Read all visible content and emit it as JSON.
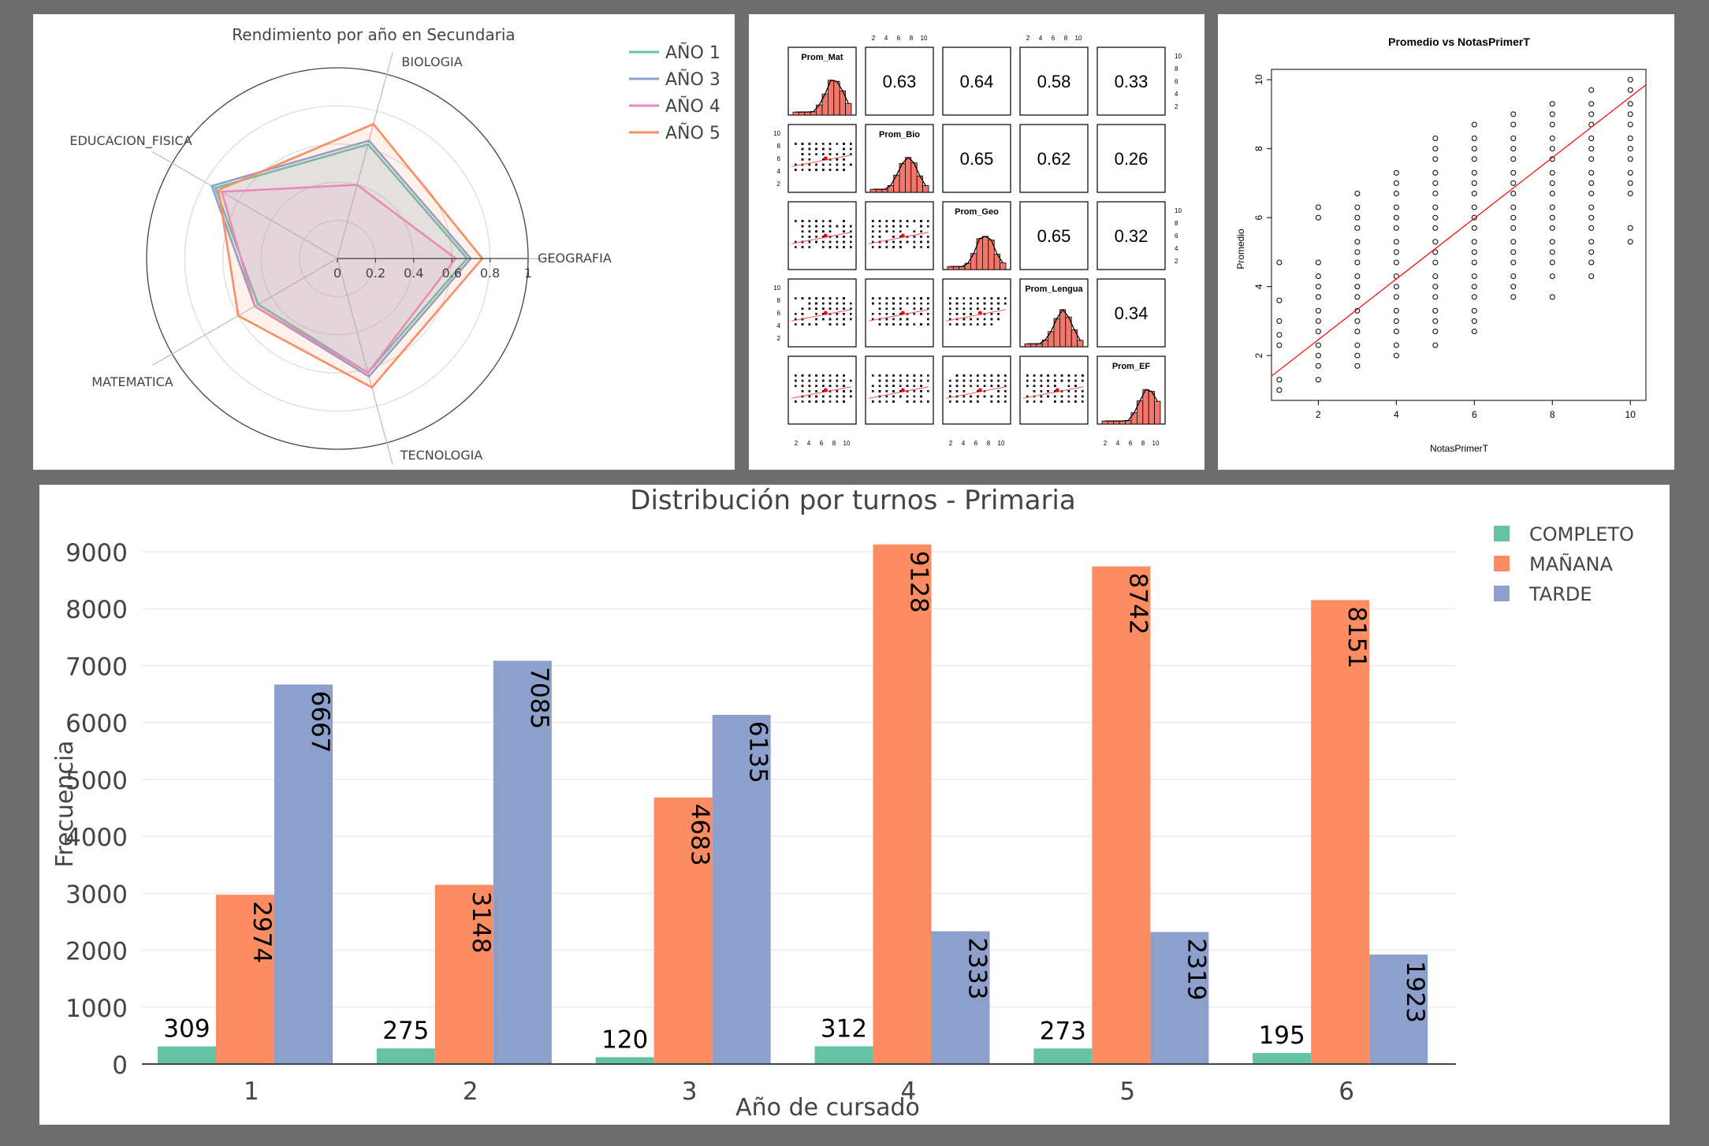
{
  "chart_data": [
    {
      "type": "radar",
      "title": "Rendimiento por año en Secundaria",
      "axes": [
        "BIOLOGIA",
        "GEOGRAFIA",
        "TECNOLOGIA",
        "MATEMATICA",
        "EDUCACION_FISICA"
      ],
      "radial_ticks": [
        "0",
        "0.2",
        "0.4",
        "0.6",
        "0.8",
        "1"
      ],
      "rlim": [
        0,
        1
      ],
      "legend_position": "top-right",
      "series": [
        {
          "name": "AÑO 1",
          "color": "#66c2a5",
          "values": [
            0.62,
            0.68,
            0.62,
            0.48,
            0.74
          ]
        },
        {
          "name": "AÑO 3",
          "color": "#8da0cb",
          "values": [
            0.64,
            0.7,
            0.64,
            0.5,
            0.76
          ]
        },
        {
          "name": "AÑO 4",
          "color": "#e78ac3",
          "values": [
            0.4,
            0.62,
            0.62,
            0.5,
            0.7
          ]
        },
        {
          "name": "AÑO 5",
          "color": "#fc8d62",
          "values": [
            0.73,
            0.76,
            0.7,
            0.6,
            0.72
          ]
        }
      ]
    },
    {
      "type": "scatter-matrix",
      "variables": [
        "Prom_Mat",
        "Prom_Bio",
        "Prom_Geo",
        "Prom_Lengua",
        "Prom_EF"
      ],
      "correlations": [
        [
          "",
          "0.63",
          "0.64",
          "0.58",
          "0.33"
        ],
        [
          "",
          "",
          "0.65",
          "0.62",
          "0.26"
        ],
        [
          "",
          "",
          "",
          "0.65",
          "0.32"
        ],
        [
          "",
          "",
          "",
          "",
          "0.34"
        ],
        [
          "",
          "",
          "",
          "",
          ""
        ]
      ],
      "axis_ticks": [
        "2",
        "4",
        "6",
        "8",
        "10"
      ],
      "histogram_color": "#f4766a"
    },
    {
      "type": "scatter",
      "title": "Promedio vs NotasPrimerT",
      "xlabel": "NotasPrimerT",
      "ylabel": "Promedio",
      "xlim": [
        0.8,
        10.4
      ],
      "ylim": [
        0.7,
        10.3
      ],
      "xticks": [
        "2",
        "4",
        "6",
        "8",
        "10"
      ],
      "yticks": [
        "2",
        "4",
        "6",
        "8",
        "10"
      ],
      "regression": {
        "intercept": 0.7,
        "slope": 0.88,
        "color": "#ff0000"
      },
      "columns": [
        {
          "x": 1,
          "y": [
            1.0,
            1.3,
            2.3,
            2.6,
            3.0,
            3.6,
            4.7
          ]
        },
        {
          "x": 2,
          "y": [
            1.3,
            1.7,
            2.0,
            2.3,
            2.7,
            3.0,
            3.3,
            3.7,
            4.0,
            4.3,
            4.7,
            6.0,
            6.3
          ]
        },
        {
          "x": 3,
          "y": [
            1.7,
            2.0,
            2.3,
            2.7,
            3.0,
            3.3,
            3.7,
            4.0,
            4.3,
            4.7,
            5.0,
            5.3,
            5.7,
            6.0,
            6.3,
            6.7
          ]
        },
        {
          "x": 4,
          "y": [
            2.0,
            2.3,
            2.7,
            3.0,
            3.3,
            3.7,
            4.0,
            4.3,
            4.7,
            5.0,
            5.3,
            5.7,
            6.0,
            6.3,
            6.7,
            7.0,
            7.3
          ]
        },
        {
          "x": 5,
          "y": [
            2.3,
            2.7,
            3.0,
            3.3,
            3.7,
            4.0,
            4.3,
            4.7,
            5.0,
            5.3,
            5.7,
            6.0,
            6.3,
            6.7,
            7.0,
            7.3,
            7.7,
            8.0,
            8.3
          ]
        },
        {
          "x": 6,
          "y": [
            2.7,
            3.0,
            3.3,
            3.7,
            4.0,
            4.3,
            4.7,
            5.0,
            5.3,
            5.7,
            6.0,
            6.3,
            6.7,
            7.0,
            7.3,
            7.7,
            8.0,
            8.3,
            8.7
          ]
        },
        {
          "x": 7,
          "y": [
            3.7,
            4.0,
            4.3,
            4.7,
            5.0,
            5.3,
            5.7,
            6.0,
            6.3,
            6.7,
            7.0,
            7.3,
            7.7,
            8.0,
            8.3,
            8.7,
            9.0
          ]
        },
        {
          "x": 8,
          "y": [
            3.7,
            4.3,
            4.7,
            5.0,
            5.3,
            5.7,
            6.0,
            6.3,
            6.7,
            7.0,
            7.3,
            7.7,
            8.0,
            8.3,
            8.7,
            9.0,
            9.3
          ]
        },
        {
          "x": 9,
          "y": [
            4.3,
            4.7,
            5.0,
            5.3,
            5.7,
            6.0,
            6.3,
            6.7,
            7.0,
            7.3,
            7.7,
            8.0,
            8.3,
            8.7,
            9.0,
            9.3,
            9.7
          ]
        },
        {
          "x": 10,
          "y": [
            5.3,
            5.7,
            6.7,
            7.0,
            7.3,
            7.7,
            8.0,
            8.3,
            8.7,
            9.0,
            9.3,
            9.7,
            10.0
          ]
        }
      ]
    },
    {
      "type": "bar",
      "title": "Distribución por turnos - Primaria",
      "xlabel": "Año de cursado",
      "ylabel": "Frecuencia",
      "categories": [
        "1",
        "2",
        "3",
        "4",
        "5",
        "6"
      ],
      "ylim": [
        0,
        9400
      ],
      "yticks": [
        "0",
        "1000",
        "2000",
        "3000",
        "4000",
        "5000",
        "6000",
        "7000",
        "8000",
        "9000"
      ],
      "legend_position": "top-right",
      "series": [
        {
          "name": "COMPLETO",
          "color": "#66c2a5",
          "values": [
            309,
            275,
            120,
            312,
            273,
            195
          ]
        },
        {
          "name": "MAÑANA",
          "color": "#fc8d62",
          "values": [
            2974,
            3148,
            4683,
            9128,
            8742,
            8151
          ]
        },
        {
          "name": "TARDE",
          "color": "#8da0cb",
          "values": [
            6667,
            7085,
            6135,
            2333,
            2319,
            1923
          ]
        }
      ]
    }
  ]
}
